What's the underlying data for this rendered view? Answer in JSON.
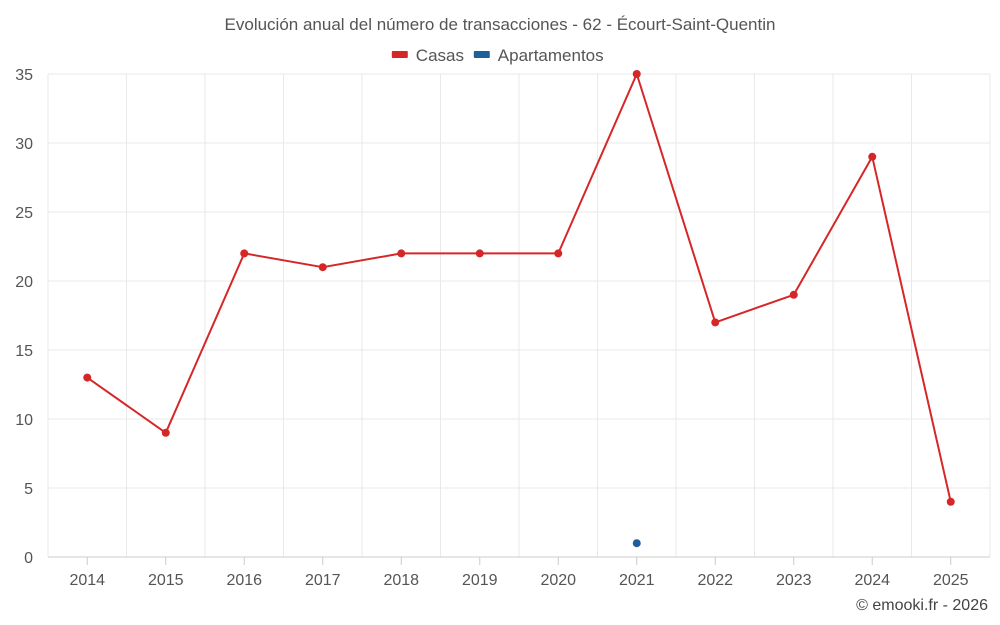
{
  "chart_data": {
    "type": "line",
    "title": "Evolución anual del número de transacciones - 62 - Écourt-Saint-Quentin",
    "categories": [
      "2014",
      "2015",
      "2016",
      "2017",
      "2018",
      "2019",
      "2020",
      "2021",
      "2022",
      "2023",
      "2024",
      "2025"
    ],
    "series": [
      {
        "name": "Casas",
        "color": "#d62728",
        "values": [
          13,
          9,
          22,
          21,
          22,
          22,
          22,
          35,
          17,
          19,
          29,
          4
        ]
      },
      {
        "name": "Apartamentos",
        "color": "#1f5f99",
        "values": [
          null,
          null,
          null,
          null,
          null,
          null,
          null,
          1,
          null,
          null,
          null,
          null
        ]
      }
    ],
    "yticks": [
      0,
      5,
      10,
      15,
      20,
      25,
      30,
      35
    ],
    "ylim": [
      0,
      35
    ],
    "xlabel": "",
    "ylabel": "",
    "grid": true,
    "legend_position": "top-center"
  },
  "credit": "© emooki.fr - 2026"
}
